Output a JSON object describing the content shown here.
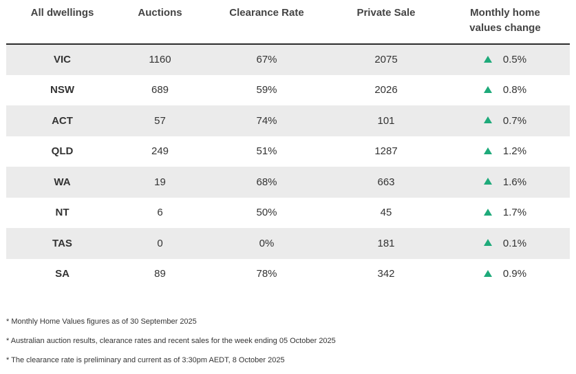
{
  "headers": {
    "region": "All dwellings",
    "auctions": "Auctions",
    "clearance_rate": "Clearance Rate",
    "private_sale": "Private Sale",
    "monthly_change_line1": "Monthly home",
    "monthly_change_line2": "values change"
  },
  "colors": {
    "up_arrow": "#1eaa7a",
    "row_shade": "#ebebeb",
    "header_rule": "#2b2b2b"
  },
  "rows": [
    {
      "region": "VIC",
      "auctions": "1160",
      "clearance_rate": "67%",
      "private_sale": "2075",
      "change_icon": "up-triangle-icon",
      "change": "0.5%"
    },
    {
      "region": "NSW",
      "auctions": "689",
      "clearance_rate": "59%",
      "private_sale": "2026",
      "change_icon": "up-triangle-icon",
      "change": "0.8%"
    },
    {
      "region": "ACT",
      "auctions": "57",
      "clearance_rate": "74%",
      "private_sale": "101",
      "change_icon": "up-triangle-icon",
      "change": "0.7%"
    },
    {
      "region": "QLD",
      "auctions": "249",
      "clearance_rate": "51%",
      "private_sale": "1287",
      "change_icon": "up-triangle-icon",
      "change": "1.2%"
    },
    {
      "region": "WA",
      "auctions": "19",
      "clearance_rate": "68%",
      "private_sale": "663",
      "change_icon": "up-triangle-icon",
      "change": "1.6%"
    },
    {
      "region": "NT",
      "auctions": "6",
      "clearance_rate": "50%",
      "private_sale": "45",
      "change_icon": "up-triangle-icon",
      "change": "1.7%"
    },
    {
      "region": "TAS",
      "auctions": "0",
      "clearance_rate": "0%",
      "private_sale": "181",
      "change_icon": "up-triangle-icon",
      "change": "0.1%"
    },
    {
      "region": "SA",
      "auctions": "89",
      "clearance_rate": "78%",
      "private_sale": "342",
      "change_icon": "up-triangle-icon",
      "change": "0.9%"
    }
  ],
  "notes": [
    "* Monthly Home Values figures as of 30 September 2025",
    "* Australian auction results, clearance rates and recent sales for the week ending 05 October 2025",
    "* The clearance rate is preliminary and current as of 3:30pm AEDT, 8 October 2025"
  ]
}
